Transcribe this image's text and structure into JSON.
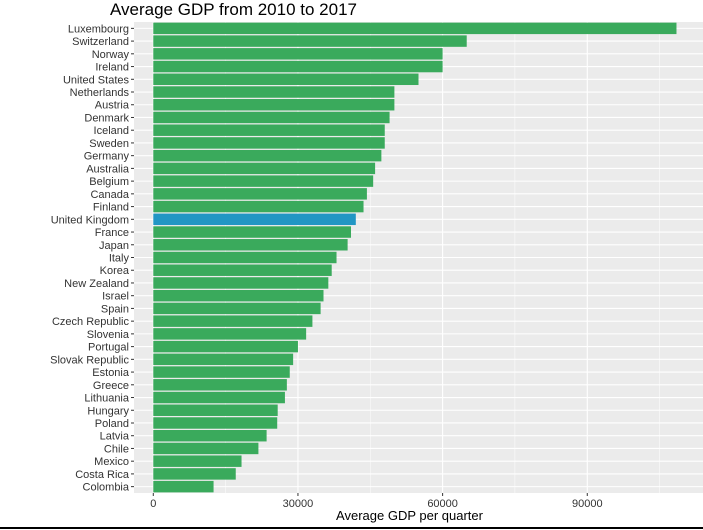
{
  "chart_data": {
    "type": "bar",
    "orientation": "horizontal",
    "title": "Average GDP from 2010 to 2017",
    "xlabel": "Average GDP per quarter",
    "ylabel": "",
    "xlim": [
      -4000,
      114000
    ],
    "xticks": [
      0,
      30000,
      60000,
      90000
    ],
    "xtick_labels": [
      "0",
      "30000",
      "60000",
      "90000"
    ],
    "grid": true,
    "legend": "none",
    "colors": {
      "default": "#3aaa5c",
      "highlight": "#2196c4",
      "panel": "#ebebeb",
      "grid": "#ffffff"
    },
    "highlight_category": "United Kingdom",
    "categories": [
      "Luxembourg",
      "Switzerland",
      "Norway",
      "Ireland",
      "United States",
      "Netherlands",
      "Austria",
      "Denmark",
      "Iceland",
      "Sweden",
      "Germany",
      "Australia",
      "Belgium",
      "Canada",
      "Finland",
      "United Kingdom",
      "France",
      "Japan",
      "Italy",
      "Korea",
      "New Zealand",
      "Israel",
      "Spain",
      "Czech Republic",
      "Slovenia",
      "Portugal",
      "Slovak Republic",
      "Estonia",
      "Greece",
      "Lithuania",
      "Hungary",
      "Poland",
      "Latvia",
      "Chile",
      "Mexico",
      "Costa Rica",
      "Colombia"
    ],
    "values": [
      108500,
      65000,
      60000,
      60000,
      55000,
      50000,
      50000,
      49000,
      48000,
      48000,
      47300,
      46000,
      45600,
      44300,
      43600,
      42000,
      41000,
      40300,
      38000,
      37000,
      36300,
      35300,
      34700,
      33000,
      31700,
      30000,
      29000,
      28300,
      27700,
      27300,
      25800,
      25700,
      23500,
      21800,
      18300,
      17100,
      12500
    ]
  }
}
